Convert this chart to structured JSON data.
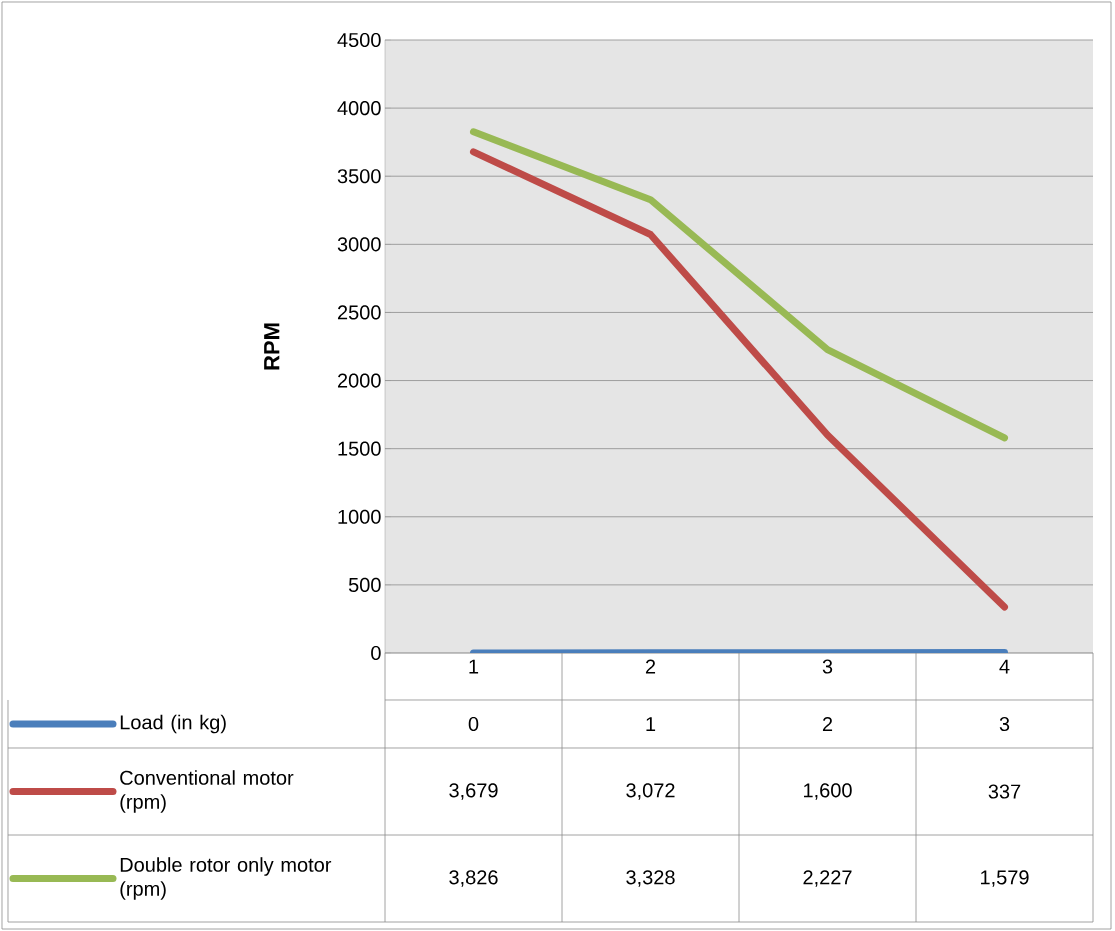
{
  "chart_data": {
    "type": "line",
    "categories": [
      "1",
      "2",
      "3",
      "4"
    ],
    "ylabel": "RPM",
    "ylim": [
      0,
      4500
    ],
    "yticks": [
      0,
      500,
      1000,
      1500,
      2000,
      2500,
      3000,
      3500,
      4000,
      4500
    ],
    "grid": "y",
    "legend": "bottom",
    "series": [
      {
        "name": "Load (in kg)",
        "color": "#4a7ebb",
        "values": [
          0,
          1,
          2,
          3
        ],
        "value_labels": [
          "0",
          "1",
          "2",
          "3"
        ]
      },
      {
        "name": "Conventional motor (rpm)",
        "color": "#be4b48",
        "values": [
          3679,
          3072,
          1600,
          337
        ],
        "value_labels": [
          "3,679",
          "3,072",
          "1,600",
          "337"
        ]
      },
      {
        "name": "Double rotor only motor (rpm)",
        "color": "#98b954",
        "values": [
          3826,
          3328,
          2227,
          1579
        ],
        "value_labels": [
          "3,826",
          "3,328",
          "2,227",
          "1,579"
        ]
      }
    ]
  }
}
